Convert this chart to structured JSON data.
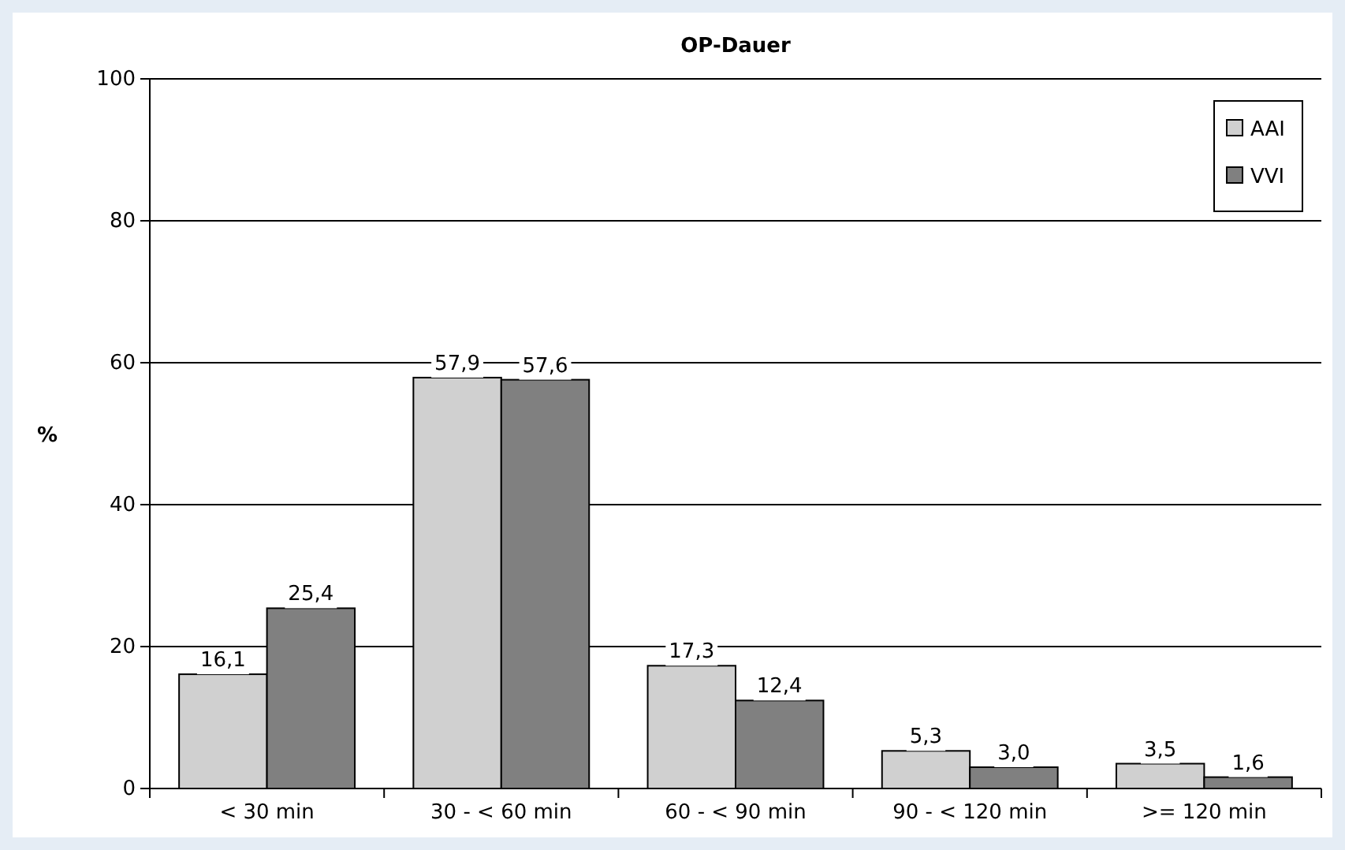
{
  "chart_data": {
    "type": "bar",
    "title": "OP-Dauer",
    "ylabel": "%",
    "categories": [
      "< 30 min",
      "30 - < 60 min",
      "60 - < 90 min",
      "90 - < 120 min",
      ">= 120 min"
    ],
    "series": [
      {
        "name": "AAI",
        "color": "#d0d0d0",
        "values": [
          16.1,
          57.9,
          17.3,
          5.3,
          3.5
        ],
        "value_labels": [
          "16,1",
          "57,9",
          "17,3",
          "5,3",
          "3,5"
        ]
      },
      {
        "name": "VVI",
        "color": "#808080",
        "values": [
          25.4,
          57.6,
          12.4,
          3.0,
          1.6
        ],
        "value_labels": [
          "25,4",
          "57,6",
          "12,4",
          "3,0",
          "1,6"
        ]
      }
    ],
    "ylim": [
      0,
      100
    ],
    "yticks": [
      0,
      20,
      40,
      60,
      80,
      100
    ],
    "grid": "y",
    "legend": "top right"
  }
}
